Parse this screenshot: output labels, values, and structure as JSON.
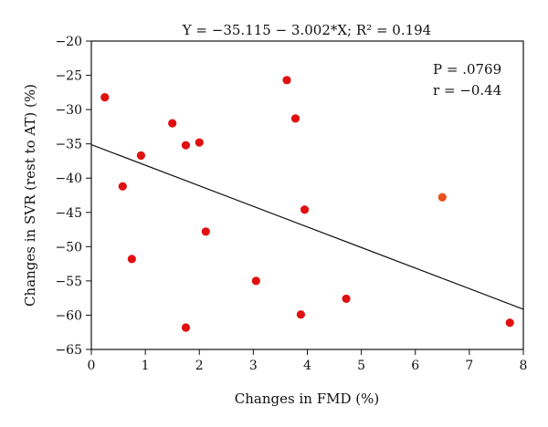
{
  "chart_data": {
    "type": "scatter",
    "title": "Y = −35.115 − 3.002*X; R² = 0.194",
    "xlabel": "Changes in FMD (%)",
    "ylabel": "Changes in SVR (rest to AT) (%)",
    "xlim": [
      0,
      8
    ],
    "ylim": [
      -65,
      -20
    ],
    "x_ticks": [
      0,
      1,
      2,
      3,
      4,
      5,
      6,
      7,
      8
    ],
    "y_ticks": [
      -20,
      -25,
      -30,
      -35,
      -40,
      -45,
      -50,
      -55,
      -60,
      -65
    ],
    "grid": false,
    "fit_line": {
      "intercept": -35.115,
      "slope": -3.002
    },
    "annotations": [
      "P = .0769",
      "r = −0.44"
    ],
    "points": [
      {
        "x": 0.25,
        "y": -28.2
      },
      {
        "x": 0.58,
        "y": -41.2
      },
      {
        "x": 0.75,
        "y": -51.8
      },
      {
        "x": 0.92,
        "y": -36.7
      },
      {
        "x": 1.5,
        "y": -32.0
      },
      {
        "x": 1.75,
        "y": -35.2
      },
      {
        "x": 1.75,
        "y": -61.8
      },
      {
        "x": 2.0,
        "y": -34.8
      },
      {
        "x": 2.12,
        "y": -47.8
      },
      {
        "x": 3.05,
        "y": -55.0
      },
      {
        "x": 3.62,
        "y": -25.7
      },
      {
        "x": 3.78,
        "y": -31.3
      },
      {
        "x": 3.88,
        "y": -59.9
      },
      {
        "x": 3.95,
        "y": -44.6
      },
      {
        "x": 4.72,
        "y": -57.6
      },
      {
        "x": 6.5,
        "y": -42.8,
        "color": "#e8501e"
      },
      {
        "x": 7.75,
        "y": -61.1
      }
    ],
    "point_color": "#e01010"
  }
}
